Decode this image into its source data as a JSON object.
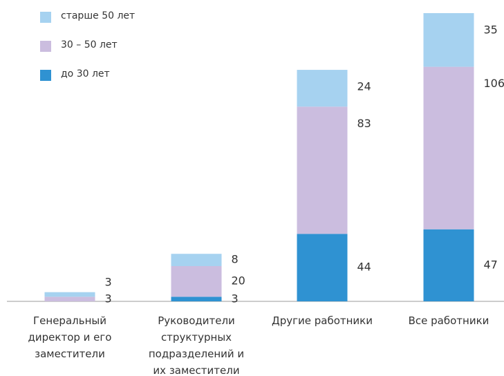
{
  "chart_data": {
    "type": "stacked-bar",
    "categories": [
      "Генеральный\nдиректор и его\nзаместители",
      "Руководители\nструктурных\nподразделений и\nих заместители",
      "Другие работники",
      "Все работники"
    ],
    "series": [
      {
        "name": "до 30 лет",
        "color": "#2f92d2",
        "values": [
          null,
          3,
          44,
          47
        ]
      },
      {
        "name": "30 – 50 лет",
        "color": "#cbbddf",
        "values": [
          3,
          20,
          83,
          106
        ]
      },
      {
        "name": "старше 50 лет",
        "color": "#a6d2f0",
        "values": [
          3,
          8,
          24,
          35
        ]
      }
    ]
  }
}
